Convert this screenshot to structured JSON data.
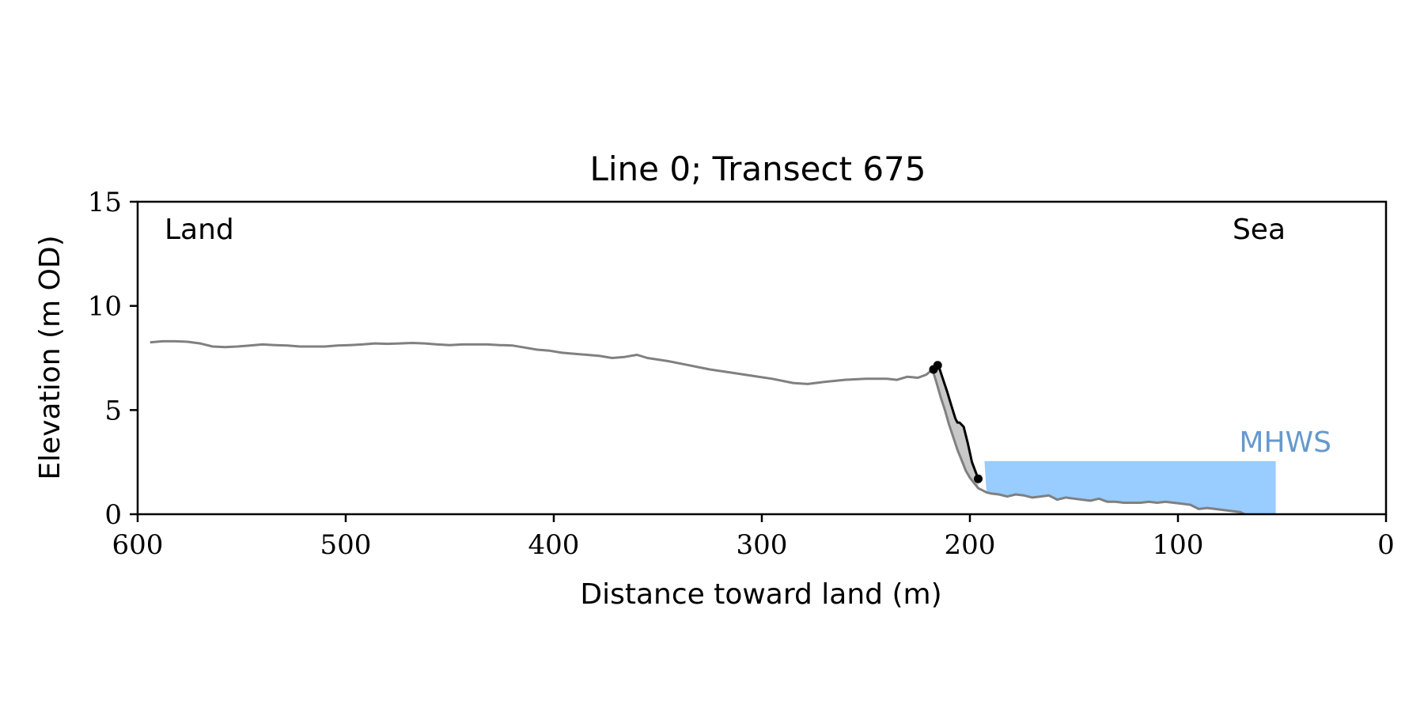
{
  "chart_data": {
    "type": "line",
    "title": "Line 0; Transect 675",
    "xlabel": "Distance toward land (m)",
    "ylabel": "Elevation (m OD)",
    "xlim": [
      600,
      0
    ],
    "ylim": [
      0,
      15
    ],
    "x_ticks": [
      600,
      500,
      400,
      300,
      200,
      100,
      0
    ],
    "x_tick_labels": [
      "600",
      "500",
      "400",
      "300",
      "200",
      "100",
      "0"
    ],
    "y_ticks": [
      0,
      5,
      10,
      15
    ],
    "y_tick_labels": [
      "0",
      "5",
      "10",
      "15"
    ],
    "grid": false,
    "annotations": {
      "land": "Land",
      "sea": "Sea",
      "mhws": "MHWS"
    },
    "colors": {
      "profile": "#808080",
      "cliff": "#000000",
      "fill": "#c8c8c8",
      "water": "#99ccff",
      "mhws_label": "#6699cc"
    },
    "mhws": {
      "level": 2.55,
      "x_from": 193,
      "x_to": 53
    },
    "series": [
      {
        "role": "profile",
        "x": [
          594,
          588,
          582,
          576,
          570,
          564,
          558,
          552,
          546,
          540,
          534,
          528,
          522,
          516,
          510,
          504,
          498,
          492,
          486,
          480,
          474,
          468,
          462,
          456,
          450,
          444,
          438,
          432,
          426,
          420,
          414,
          408,
          402,
          396,
          390,
          384,
          378,
          372,
          366,
          360,
          355,
          345,
          335,
          325,
          315,
          305,
          295,
          285,
          278,
          270,
          260,
          250,
          240,
          235,
          230,
          225,
          221,
          218,
          216,
          214,
          212,
          210,
          208,
          206,
          204,
          202,
          200,
          198,
          196,
          194,
          192,
          190,
          186,
          182,
          178,
          174,
          170,
          166,
          162,
          158,
          154,
          150,
          146,
          142,
          138,
          134,
          130,
          126,
          122,
          118,
          114,
          110,
          106,
          102,
          98,
          94,
          90,
          86,
          82,
          78,
          74,
          70,
          68
        ],
        "y": [
          8.25,
          8.3,
          8.3,
          8.28,
          8.2,
          8.05,
          8.02,
          8.05,
          8.1,
          8.15,
          8.12,
          8.1,
          8.05,
          8.05,
          8.05,
          8.1,
          8.12,
          8.15,
          8.2,
          8.18,
          8.2,
          8.22,
          8.2,
          8.15,
          8.12,
          8.15,
          8.15,
          8.15,
          8.12,
          8.1,
          8.0,
          7.9,
          7.85,
          7.75,
          7.7,
          7.65,
          7.6,
          7.5,
          7.55,
          7.65,
          7.5,
          7.35,
          7.15,
          6.95,
          6.8,
          6.65,
          6.5,
          6.3,
          6.25,
          6.35,
          6.45,
          6.5,
          6.5,
          6.45,
          6.6,
          6.55,
          6.7,
          6.95,
          6.3,
          5.6,
          5.0,
          4.3,
          3.7,
          3.1,
          2.6,
          2.1,
          1.75,
          1.5,
          1.25,
          1.15,
          1.05,
          1.0,
          0.95,
          0.85,
          0.95,
          0.9,
          0.8,
          0.85,
          0.9,
          0.7,
          0.8,
          0.75,
          0.7,
          0.65,
          0.75,
          0.6,
          0.6,
          0.55,
          0.55,
          0.55,
          0.6,
          0.55,
          0.6,
          0.55,
          0.5,
          0.45,
          0.25,
          0.3,
          0.25,
          0.2,
          0.15,
          0.1,
          0.0
        ]
      },
      {
        "role": "cliff",
        "x": [
          217,
          215,
          213,
          211,
          209,
          207,
          206,
          205,
          203,
          201,
          199,
          196
        ],
        "y": [
          7.0,
          7.1,
          6.5,
          5.9,
          5.25,
          4.6,
          4.4,
          4.4,
          4.2,
          3.4,
          2.5,
          1.7
        ]
      }
    ],
    "markers": [
      {
        "x": 217.5,
        "y": 6.95
      },
      {
        "x": 215.5,
        "y": 7.15
      },
      {
        "x": 196,
        "y": 1.7
      }
    ]
  }
}
